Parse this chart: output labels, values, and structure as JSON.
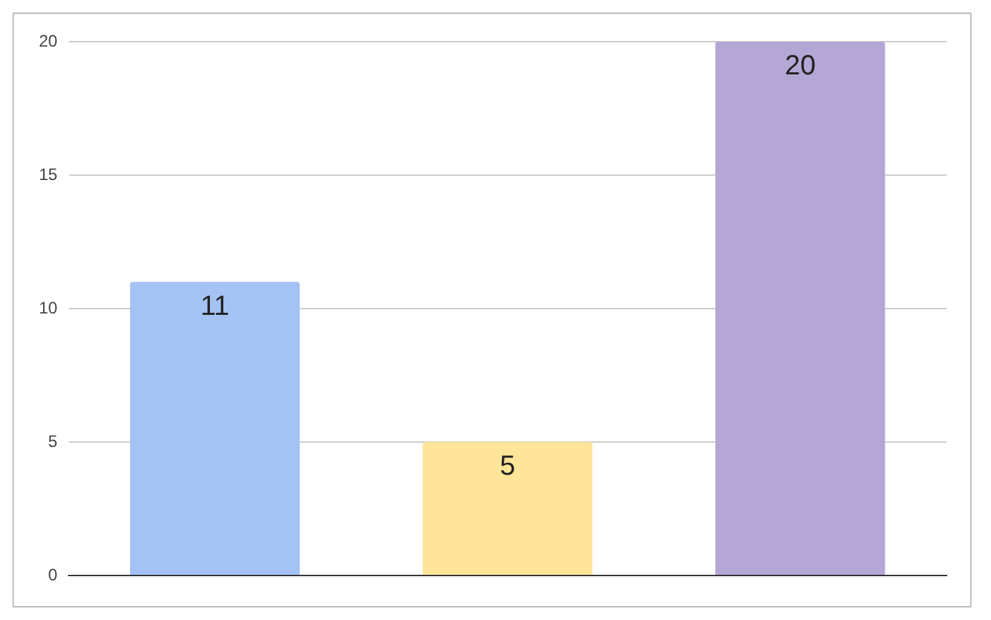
{
  "chart_data": {
    "type": "bar",
    "categories": [
      null,
      null,
      null
    ],
    "values": [
      11,
      5,
      20
    ],
    "colors": [
      "#a4c2f4",
      "#ffe599",
      "#b4a7d6"
    ],
    "ylim": [
      0,
      20
    ],
    "yticks": [
      0,
      5,
      10,
      15,
      20
    ],
    "grid": "y",
    "data_labels": true,
    "legend": false,
    "tick_labels": "y"
  }
}
